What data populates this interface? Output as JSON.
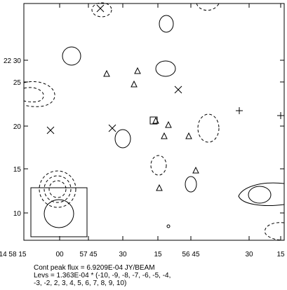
{
  "axes": {
    "x_labels": [
      "14 58 15",
      "00",
      "57 45",
      "30",
      "15",
      "56 45",
      "30",
      "15"
    ],
    "y_labels": [
      "22 30",
      "25",
      "20",
      "15",
      "10"
    ]
  },
  "footer": [
    "Cont peak flux = 6.9209E-04 JY/BEAM",
    "Levs = 1.363E-04 * (-10, -9, -8, -7, -6, -5, -4,",
    "-3, -2, 2, 3, 4, 5, 6, 7, 8, 9, 10)"
  ]
}
